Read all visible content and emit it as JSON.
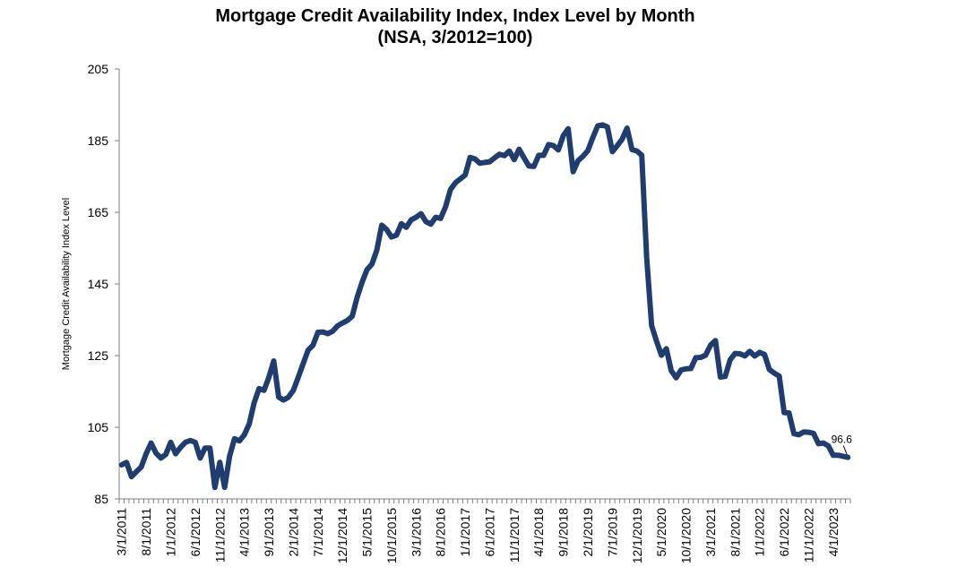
{
  "chart_data": {
    "type": "line",
    "title": "Mortgage Credit Availability Index, Index Level by Month",
    "subtitle": "(NSA, 3/2012=100)",
    "ylabel": "Mortgage Credit Availability Index Level",
    "xlabel": "",
    "ylim": [
      85,
      205
    ],
    "yticks": [
      85,
      105,
      125,
      145,
      165,
      185,
      205
    ],
    "xtick_labels": [
      "3/1/2011",
      "8/1/2011",
      "1/1/2012",
      "6/1/2012",
      "11/1/2012",
      "4/1/2013",
      "9/1/2013",
      "2/1/2014",
      "7/1/2014",
      "12/1/2014",
      "5/1/2015",
      "10/1/2015",
      "3/1/2016",
      "8/1/2016",
      "1/1/2017",
      "6/1/2017",
      "11/1/2017",
      "4/1/2018",
      "9/1/2018",
      "2/1/2019",
      "7/1/2019",
      "12/1/2019",
      "5/1/2020",
      "10/1/2020",
      "3/1/2021",
      "8/1/2021",
      "1/1/2022",
      "6/1/2022",
      "11/1/2022",
      "4/1/2023"
    ],
    "grid": false,
    "legend": "none",
    "series": [
      {
        "color": "#1f3d6e",
        "start": "3/1/2011",
        "frequency": "monthly",
        "values": [
          94.5,
          95.2,
          91.2,
          92.6,
          93.9,
          97.6,
          100.6,
          97.8,
          96.4,
          97.4,
          100.8,
          97.6,
          99.4,
          100.8,
          101.3,
          100.8,
          96.4,
          99.2,
          99.2,
          88.2,
          95.2,
          88.2,
          96.9,
          101.8,
          101.2,
          102.9,
          105.9,
          111.8,
          115.8,
          115.3,
          118.9,
          123.5,
          113.4,
          112.6,
          113.4,
          115.3,
          119.0,
          122.8,
          126.5,
          127.9,
          131.5,
          131.6,
          131.1,
          131.8,
          133.3,
          134.1,
          134.8,
          136.0,
          141.3,
          145.5,
          149.0,
          150.5,
          154.4,
          161.4,
          160.2,
          158.1,
          158.6,
          161.8,
          160.8,
          162.9,
          163.6,
          164.6,
          162.4,
          161.7,
          163.6,
          163.3,
          166.5,
          171.3,
          173.2,
          174.3,
          175.4,
          180.3,
          179.9,
          178.7,
          178.9,
          179.1,
          180.2,
          181.2,
          180.8,
          182.1,
          179.7,
          182.6,
          180.2,
          177.9,
          177.8,
          180.9,
          180.9,
          183.9,
          183.6,
          182.4,
          186.4,
          188.3,
          176.3,
          179.4,
          180.6,
          182.2,
          185.8,
          189.1,
          189.4,
          188.8,
          181.9,
          183.6,
          185.4,
          188.5,
          182.5,
          182.1,
          180.9,
          152.3,
          133.4,
          129.0,
          125.1,
          126.9,
          120.8,
          118.8,
          121.0,
          121.3,
          121.4,
          124.4,
          124.5,
          125.1,
          127.9,
          129.2,
          119.0,
          119.2,
          123.8,
          125.6,
          125.5,
          124.9,
          126.2,
          124.9,
          125.9,
          125.3,
          121.1,
          120.1,
          119.3,
          109.1,
          109.0,
          103.2,
          102.9,
          103.7,
          103.6,
          103.3,
          100.4,
          100.6,
          99.8,
          97.2,
          97.2,
          96.9,
          96.6
        ]
      }
    ],
    "annotations": [
      {
        "text": "96.6",
        "x": "7/1/2023",
        "y": 96.6
      }
    ]
  }
}
